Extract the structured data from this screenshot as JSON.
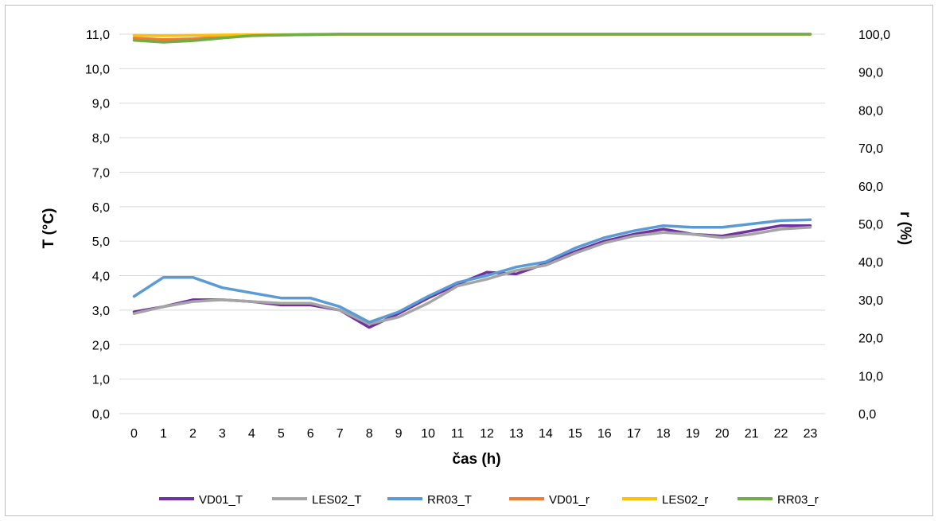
{
  "chart_data": {
    "type": "line",
    "xlabel": "čas (h)",
    "ylabel_left": "T (°C)",
    "ylabel_right": "r (%)",
    "x": [
      0,
      1,
      2,
      3,
      4,
      5,
      6,
      7,
      8,
      9,
      10,
      11,
      12,
      13,
      14,
      15,
      16,
      17,
      18,
      19,
      20,
      21,
      22,
      23
    ],
    "ylim_left": [
      0,
      11
    ],
    "ylim_right": [
      0,
      100
    ],
    "yticks_left": [
      "0,0",
      "1,0",
      "2,0",
      "3,0",
      "4,0",
      "5,0",
      "6,0",
      "7,0",
      "8,0",
      "9,0",
      "10,0",
      "11,0"
    ],
    "yticks_right": [
      "0,0",
      "10,0",
      "20,0",
      "30,0",
      "40,0",
      "50,0",
      "60,0",
      "70,0",
      "80,0",
      "90,0",
      "100,0"
    ],
    "grid": "horizontal",
    "legend_position": "bottom",
    "series": [
      {
        "name": "VD01_T",
        "axis": "left",
        "color": "#7030a0",
        "values": [
          2.95,
          3.1,
          3.3,
          3.3,
          3.25,
          3.15,
          3.15,
          3.0,
          2.5,
          2.9,
          3.35,
          3.75,
          4.1,
          4.05,
          4.35,
          4.7,
          5.0,
          5.2,
          5.35,
          5.2,
          5.15,
          5.3,
          5.45,
          5.45
        ]
      },
      {
        "name": "LES02_T",
        "axis": "left",
        "color": "#a5a5a5",
        "values": [
          2.9,
          3.1,
          3.25,
          3.3,
          3.25,
          3.2,
          3.2,
          3.0,
          2.6,
          2.8,
          3.2,
          3.7,
          3.9,
          4.15,
          4.3,
          4.65,
          4.95,
          5.15,
          5.25,
          5.2,
          5.1,
          5.2,
          5.35,
          5.4
        ]
      },
      {
        "name": "RR03_T",
        "axis": "left",
        "color": "#5b9bd5",
        "values": [
          3.4,
          3.95,
          3.95,
          3.65,
          3.5,
          3.35,
          3.35,
          3.1,
          2.65,
          2.95,
          3.4,
          3.8,
          4.0,
          4.25,
          4.4,
          4.8,
          5.1,
          5.3,
          5.45,
          5.4,
          5.4,
          5.5,
          5.6,
          5.62
        ]
      },
      {
        "name": "VD01_r",
        "axis": "right",
        "color": "#ed7d31",
        "values": [
          99.0,
          98.6,
          98.8,
          99.3,
          99.7,
          99.8,
          99.9,
          100,
          100,
          100,
          100,
          100,
          100,
          100,
          100,
          100,
          100,
          100,
          100,
          100,
          100,
          100,
          100,
          100
        ]
      },
      {
        "name": "LES02_r",
        "axis": "right",
        "color": "#ffc000",
        "values": [
          99.7,
          99.6,
          99.7,
          99.8,
          99.9,
          99.9,
          100,
          100,
          100,
          100,
          100,
          100,
          100,
          100,
          100,
          100,
          100,
          100,
          100,
          100,
          100,
          100,
          100,
          100
        ]
      },
      {
        "name": "RR03_r",
        "axis": "right",
        "color": "#70ad47",
        "values": [
          98.4,
          97.9,
          98.3,
          99.0,
          99.6,
          99.8,
          99.9,
          100,
          100,
          100,
          100,
          100,
          100,
          100,
          100,
          100,
          100,
          100,
          100,
          100,
          100,
          100,
          100,
          100
        ]
      }
    ]
  }
}
